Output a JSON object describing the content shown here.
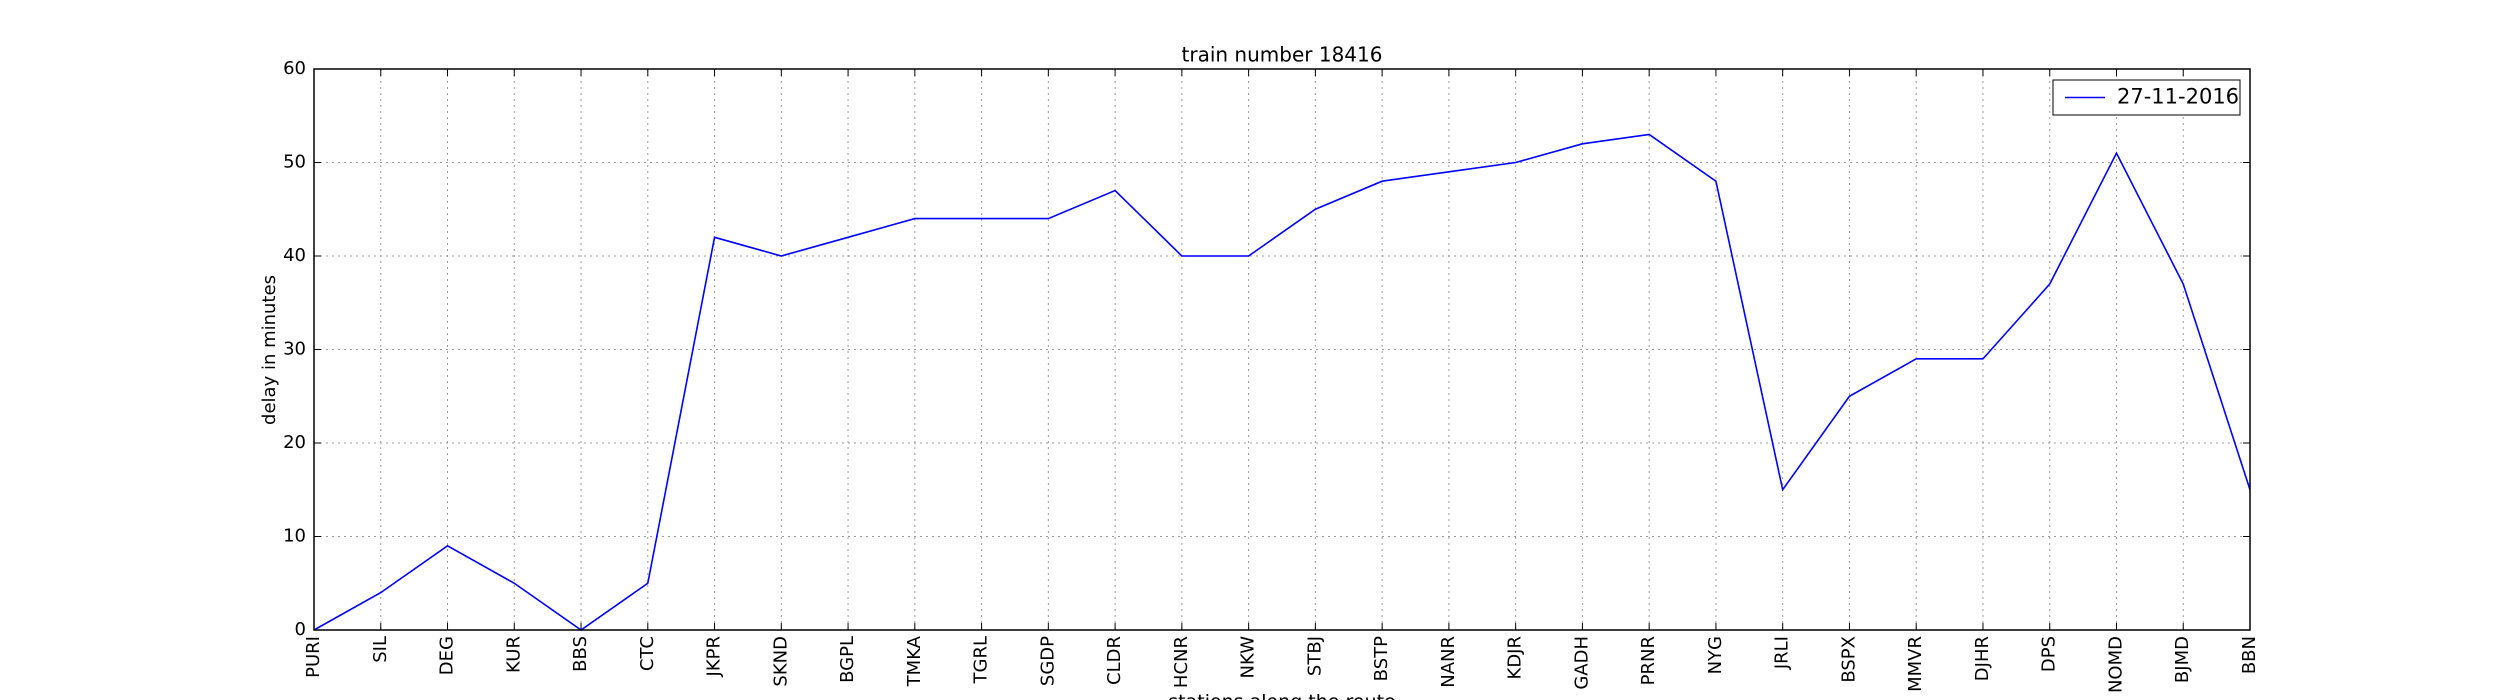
{
  "chart_data": {
    "type": "line",
    "title": "train number 18416",
    "x_label": "stations along the route",
    "y_label": "delay in minutes",
    "categories": [
      "PURI",
      "SIL",
      "DEG",
      "KUR",
      "BBS",
      "CTC",
      "JKPR",
      "SKND",
      "BGPL",
      "TMKA",
      "TGRL",
      "SGDP",
      "CLDR",
      "HCNR",
      "NKW",
      "STBJ",
      "BSTP",
      "NANR",
      "KDJR",
      "GADH",
      "PRNR",
      "NYG",
      "JRLI",
      "BSPX",
      "MMVR",
      "DJHR",
      "DPS",
      "NOMD",
      "BJMD",
      "BBN"
    ],
    "series": [
      {
        "name": "27-11-2016",
        "color": "#0000ff",
        "values": [
          0,
          4,
          9,
          5,
          0,
          5,
          42,
          40,
          42,
          44,
          44,
          44,
          47,
          40,
          40,
          45,
          48,
          49,
          50,
          52,
          53,
          48,
          15,
          25,
          29,
          29,
          37,
          51,
          37,
          15
        ]
      }
    ],
    "ylim": [
      0,
      60
    ],
    "yticks": [
      0,
      10,
      20,
      30,
      40,
      50,
      60
    ],
    "grid": true,
    "legend": "upper right"
  }
}
